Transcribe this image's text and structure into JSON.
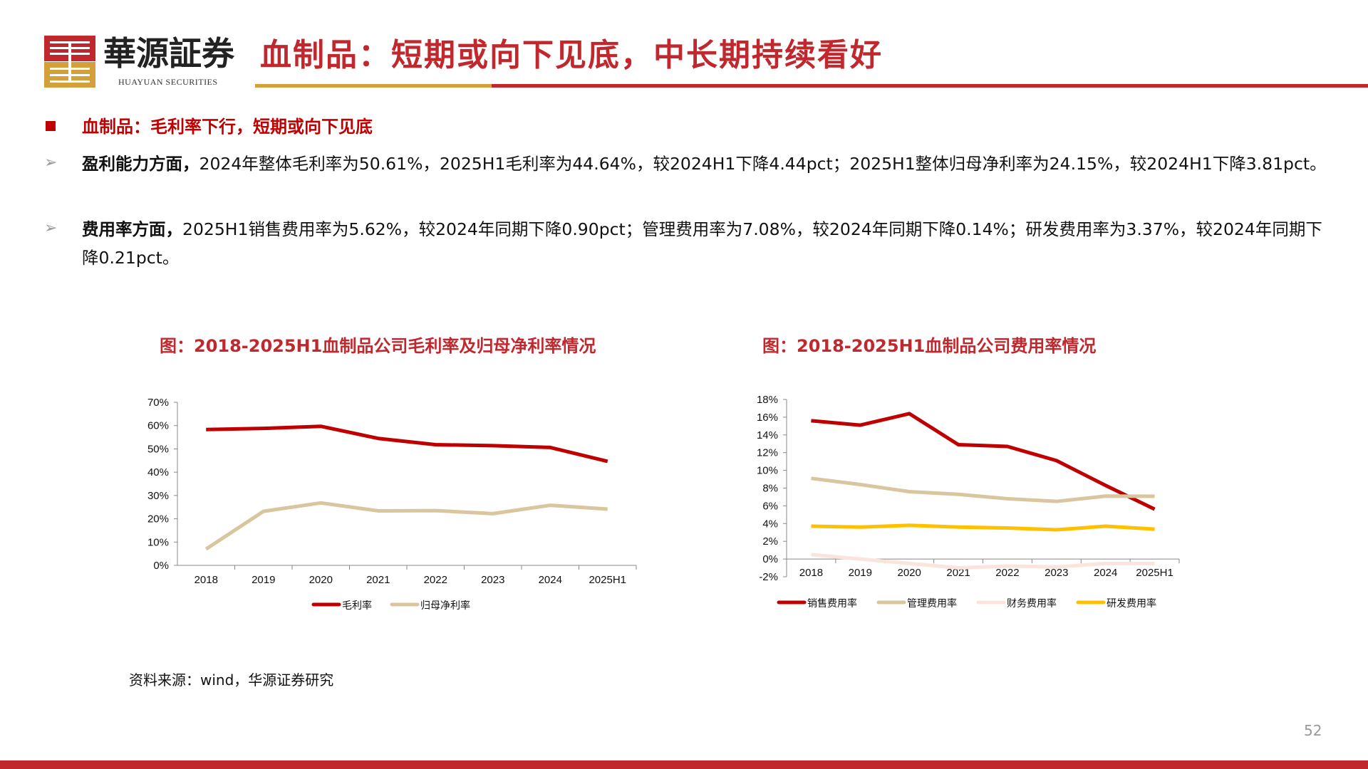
{
  "header": {
    "logo_cn": "華源証券",
    "logo_en": "HUAYUAN SECURITIES",
    "title": "血制品：短期或向下见底，中长期持续看好",
    "colors": {
      "red": "#c0282e",
      "gold": "#d4a03c"
    }
  },
  "section": {
    "heading": "血制品：毛利率下行，短期或向下见底",
    "bullets": [
      {
        "lead": "盈利能力方面，",
        "text": "2024年整体毛利率为50.61%，2025H1毛利率为44.64%，较2024H1下降4.44pct；2025H1整体归母净利率为24.15%，较2024H1下降3.81pct。"
      },
      {
        "lead": "费用率方面，",
        "text": "2025H1销售费用率为5.62%，较2024年同期下降0.90pct；管理费用率为7.08%，较2024年同期下降0.14%；研发费用率为3.37%，较2024年同期下降0.21pct。"
      }
    ]
  },
  "chart_data": [
    {
      "type": "line",
      "title": "图：2018-2025H1血制品公司毛利率及归母净利率情况",
      "categories": [
        "2018",
        "2019",
        "2020",
        "2021",
        "2022",
        "2023",
        "2024",
        "2025H1"
      ],
      "ylim": [
        0,
        70
      ],
      "yticks": [
        0,
        10,
        20,
        30,
        40,
        50,
        60,
        70
      ],
      "legend": "bottom",
      "series": [
        {
          "name": "毛利率",
          "color": "#c00000",
          "values": [
            58.3,
            58.8,
            59.7,
            54.5,
            51.8,
            51.4,
            50.61,
            44.64
          ]
        },
        {
          "name": "归母净利率",
          "color": "#d9c59e",
          "values": [
            7.0,
            23.2,
            26.8,
            23.4,
            23.5,
            22.2,
            25.8,
            24.15
          ]
        }
      ]
    },
    {
      "type": "line",
      "title": "图：2018-2025H1血制品公司费用率情况",
      "categories": [
        "2018",
        "2019",
        "2020",
        "2021",
        "2022",
        "2023",
        "2024",
        "2025H1"
      ],
      "ylim": [
        -2,
        18
      ],
      "yticks": [
        -2,
        0,
        2,
        4,
        6,
        8,
        10,
        12,
        14,
        16,
        18
      ],
      "legend": "bottom",
      "series": [
        {
          "name": "销售费用率",
          "color": "#c00000",
          "values": [
            15.6,
            15.1,
            16.4,
            12.9,
            12.7,
            11.1,
            8.3,
            5.62
          ]
        },
        {
          "name": "管理费用率",
          "color": "#d9c59e",
          "values": [
            9.1,
            8.4,
            7.6,
            7.3,
            6.8,
            6.5,
            7.1,
            7.08
          ]
        },
        {
          "name": "财务费用率",
          "color": "#fbe4dc",
          "values": [
            0.5,
            0.0,
            -0.5,
            -1.0,
            -0.8,
            -0.9,
            -0.5,
            -0.5
          ]
        },
        {
          "name": "研发费用率",
          "color": "#ffc000",
          "values": [
            3.7,
            3.6,
            3.8,
            3.6,
            3.5,
            3.3,
            3.7,
            3.37
          ]
        }
      ]
    }
  ],
  "footer": {
    "source": "资料来源：wind，华源证券研究",
    "page": "52"
  }
}
